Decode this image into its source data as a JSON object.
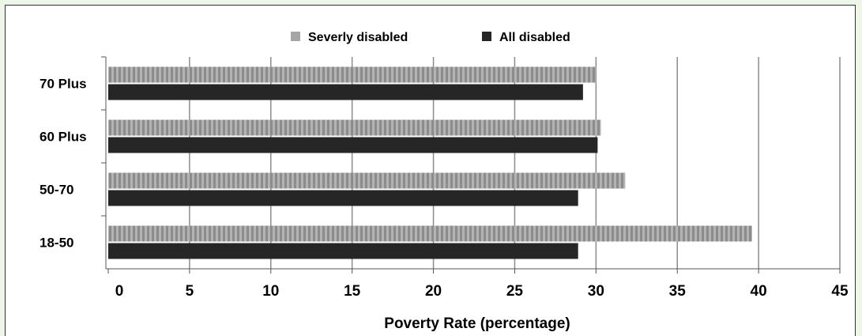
{
  "chart_data": {
    "type": "bar",
    "orientation": "horizontal",
    "categories": [
      "18-50",
      "50-70",
      "60 Plus",
      "70 Plus"
    ],
    "series": [
      {
        "name": "Severly disabled",
        "values": [
          39.6,
          31.8,
          30.3,
          30.0
        ],
        "color": "#a6a6a6"
      },
      {
        "name": "All disabled",
        "values": [
          28.9,
          28.9,
          30.1,
          29.2
        ],
        "color": "#262626"
      }
    ],
    "xlabel": "Poverty Rate (percentage)",
    "ylabel": "",
    "xlim": [
      0,
      45
    ],
    "xticks": [
      "0",
      "5",
      "10",
      "15",
      "20",
      "25",
      "30",
      "35",
      "40",
      "45"
    ],
    "grid": "vertical",
    "legend_position": "top"
  }
}
